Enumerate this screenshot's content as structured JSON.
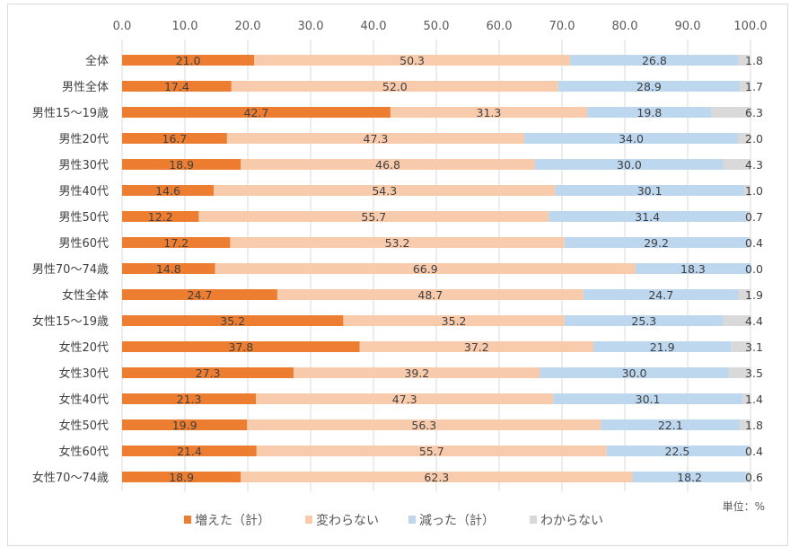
{
  "chart_data": {
    "type": "bar",
    "orientation": "horizontal",
    "stacked": true,
    "categories": [
      "全体",
      "男性全体",
      "男性15〜19歳",
      "男性20代",
      "男性30代",
      "男性40代",
      "男性50代",
      "男性60代",
      "男性70〜74歳",
      "女性全体",
      "女性15〜19歳",
      "女性20代",
      "女性30代",
      "女性40代",
      "女性50代",
      "女性60代",
      "女性70〜74歳"
    ],
    "series": [
      {
        "name": "増えた（計）",
        "color": "#ED7D31",
        "values": [
          21.0,
          17.4,
          42.7,
          16.7,
          18.9,
          14.6,
          12.2,
          17.2,
          14.8,
          24.7,
          35.2,
          37.8,
          27.3,
          21.3,
          19.9,
          21.4,
          18.9
        ]
      },
      {
        "name": "変わらない",
        "color": "#F8CBAD",
        "values": [
          50.3,
          52.0,
          31.3,
          47.3,
          46.8,
          54.3,
          55.7,
          53.2,
          66.9,
          48.7,
          35.2,
          37.2,
          39.2,
          47.3,
          56.3,
          55.7,
          62.3
        ]
      },
      {
        "name": "減った（計）",
        "color": "#BDD7EE",
        "values": [
          26.8,
          28.9,
          19.8,
          34.0,
          30.0,
          30.1,
          31.4,
          29.2,
          18.3,
          24.7,
          25.3,
          21.9,
          30.0,
          30.1,
          22.1,
          22.5,
          18.2
        ]
      },
      {
        "name": "わからない",
        "color": "#D9D9D9",
        "values": [
          1.8,
          1.7,
          6.3,
          2.0,
          4.3,
          1.0,
          0.7,
          0.4,
          0.0,
          1.9,
          4.4,
          3.1,
          3.5,
          1.4,
          1.8,
          0.4,
          0.6
        ]
      }
    ],
    "xlim": [
      0,
      100
    ],
    "xticks": [
      "0.0",
      "10.0",
      "20.0",
      "30.0",
      "40.0",
      "50.0",
      "60.0",
      "70.0",
      "80.0",
      "90.0",
      "100.0"
    ],
    "grid": true,
    "axis_position": "top",
    "legend_position": "bottom",
    "unit_label": "単位：%"
  }
}
